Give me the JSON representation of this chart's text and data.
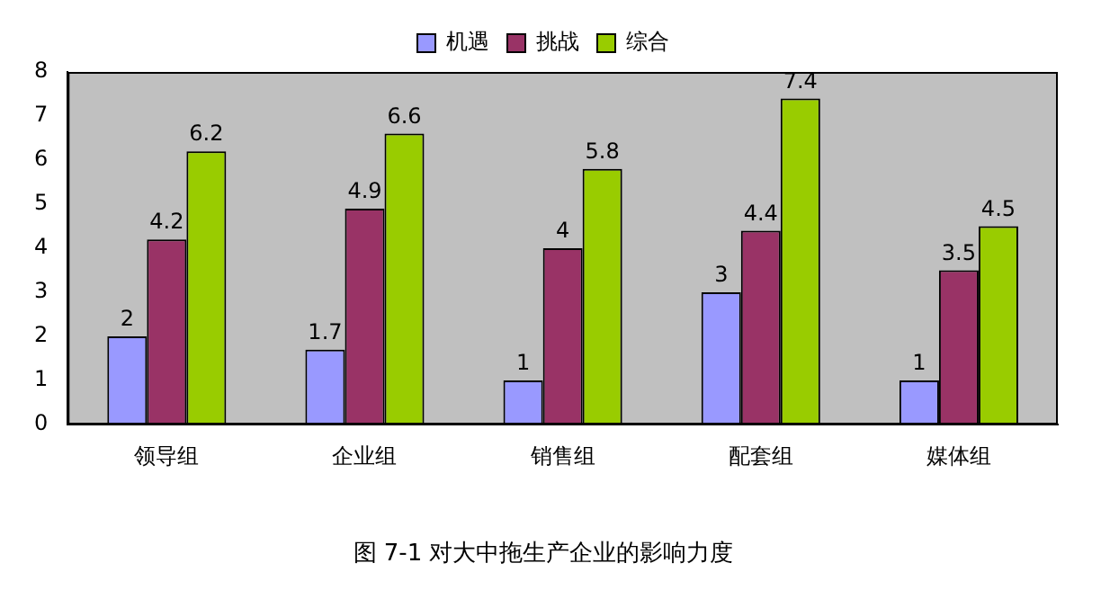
{
  "chart_data": {
    "type": "bar",
    "title": "图 7-1 对大中拖生产企业的影响力度",
    "categories": [
      "领导组",
      "企业组",
      "销售组",
      "配套组",
      "媒体组"
    ],
    "series": [
      {
        "name": "机遇",
        "color": "#9999ff",
        "values": [
          2,
          1.7,
          1,
          3,
          1
        ]
      },
      {
        "name": "挑战",
        "color": "#993366",
        "values": [
          4.2,
          4.9,
          4,
          4.4,
          3.5
        ]
      },
      {
        "name": "综合",
        "color": "#99cc00",
        "values": [
          6.2,
          6.6,
          5.8,
          7.4,
          4.5
        ]
      }
    ],
    "ylim": [
      0,
      8
    ],
    "yticks": [
      0,
      1,
      2,
      3,
      4,
      5,
      6,
      7,
      8
    ],
    "grid": false,
    "legend": "top",
    "data_labels": true
  }
}
